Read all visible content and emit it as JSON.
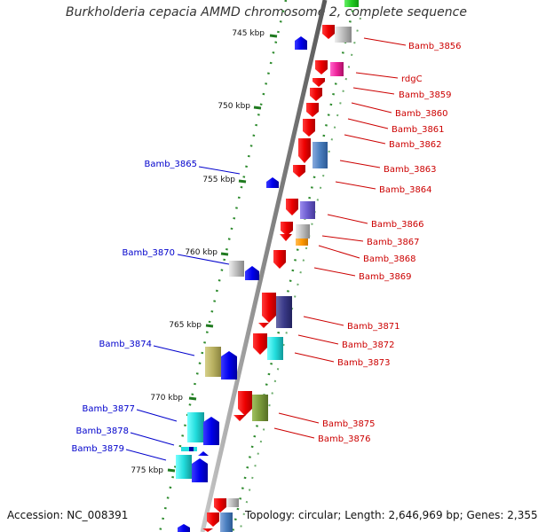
{
  "title": "Burkholderia cepacia AMMD chromosome 2, complete sequence",
  "footer": {
    "accession": "Accession: NC_008391",
    "stats": "Topology: circular; Length: 2,646,969 bp; Genes: 2,355"
  },
  "colors": {
    "backbone": "#8a8a8a",
    "tick_dots": "#2e8b2e",
    "left_label": "#0000cc",
    "right_label": "#cc0000",
    "ruler_text": "#111111"
  },
  "ruler_ticks": [
    "745 kbp",
    "750 kbp",
    "755 kbp",
    "760 kbp",
    "765 kbp",
    "770 kbp",
    "775 kbp"
  ],
  "left_labels": [
    "Bamb_3865",
    "Bamb_3870",
    "Bamb_3874",
    "Bamb_3877",
    "Bamb_3878",
    "Bamb_3879"
  ],
  "right_labels": [
    "Bamb_3856",
    "rdgC",
    "Bamb_3859",
    "Bamb_3860",
    "Bamb_3861",
    "Bamb_3862",
    "Bamb_3863",
    "Bamb_3864",
    "Bamb_3866",
    "Bamb_3867",
    "Bamb_3868",
    "Bamb_3869",
    "Bamb_3871",
    "Bamb_3872",
    "Bamb_3873",
    "Bamb_3875",
    "Bamb_3876"
  ]
}
